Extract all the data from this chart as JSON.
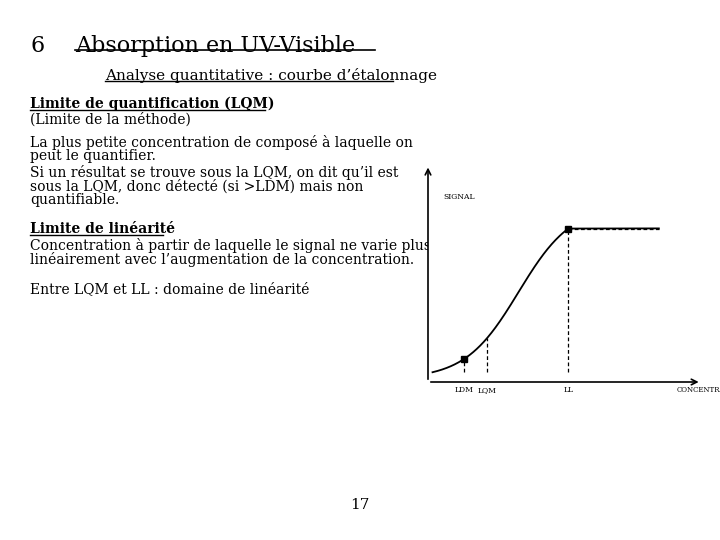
{
  "title_number": "6",
  "title_text": "Absorption en UV-Visible",
  "subtitle": "Analyse quantitative : courbe d’étalonnage",
  "section1_bold": "Limite de quantification (LQM)",
  "section1_sub": "(Limite de la méthode)",
  "para1_line1": "La plus petite concentration de composé à laquelle on",
  "para1_line2": "peut le quantifier.",
  "para1_line3": "Si un résultat se trouve sous la LQM, on dit qu’il est",
  "para1_line4": "sous la LQM, donc détecté (si >LDM) mais non",
  "para1_line5": "quantifiable.",
  "section2_bold": "Limite de linéarité",
  "para2_line1": "Concentration à partir de laquelle le signal ne varie plus",
  "para2_line2": "linéairement avec l’augmentation de la concentration.",
  "para3": "Entre LQM et LL : domaine de linéarité",
  "page_number": "17",
  "bg_color": "#ffffff",
  "text_color": "#000000",
  "graph_signal_label": "SIGNAL",
  "graph_conc_label": "CONCENTRATION",
  "graph_ldm_label": "LDM",
  "graph_lqm_label": "LQM",
  "graph_ll_label": "LL"
}
